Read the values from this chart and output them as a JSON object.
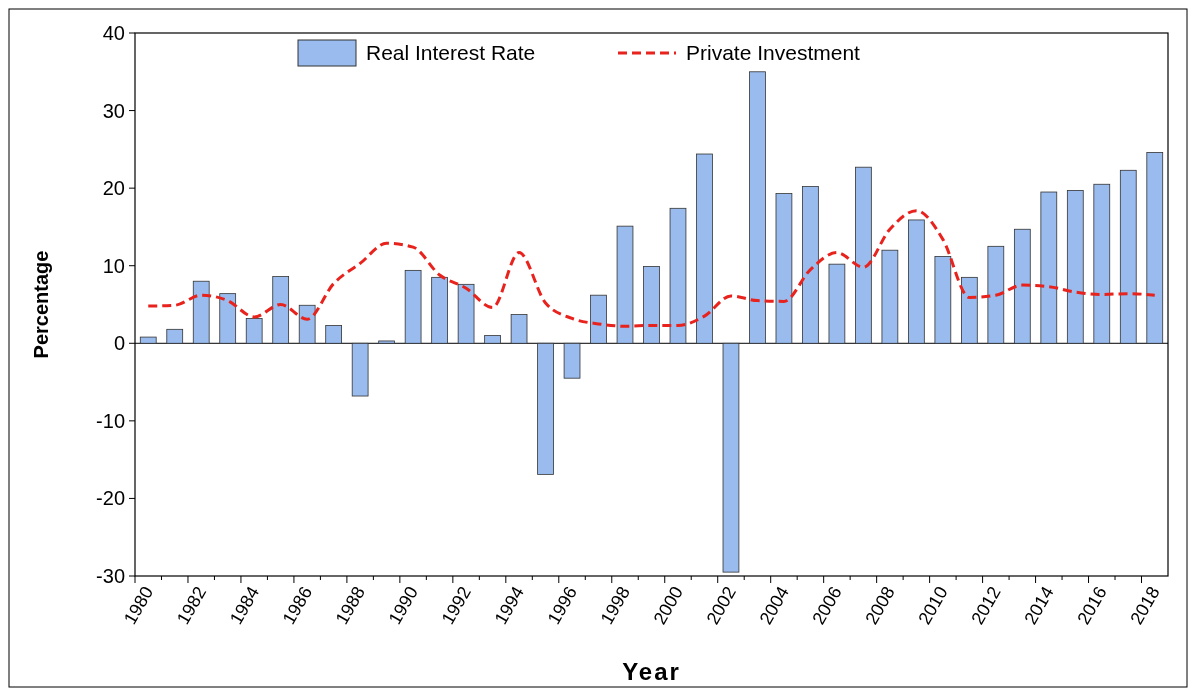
{
  "chart_data": {
    "type": "bar",
    "xlabel": "Year",
    "ylabel": "Percentage",
    "categories": [
      "1980",
      null,
      "1982",
      null,
      "1984",
      null,
      "1986",
      null,
      "1988",
      null,
      "1990",
      null,
      "1992",
      null,
      "1994",
      null,
      "1996",
      null,
      "1998",
      null,
      "2000",
      null,
      "2002",
      null,
      "2004",
      null,
      "2006",
      null,
      "2008",
      null,
      "2010",
      null,
      "2012",
      null,
      "2014",
      null,
      "2016",
      null,
      "2018"
    ],
    "series": [
      {
        "name": "Real Interest Rate",
        "color": "#99bbee",
        "values": [
          0.8,
          1.8,
          8.0,
          6.4,
          3.2,
          8.6,
          4.9,
          2.3,
          -6.8,
          0.3,
          9.4,
          8.5,
          7.6,
          1.0,
          3.7,
          -16.9,
          -4.5,
          6.2,
          15.1,
          9.9,
          17.4,
          24.4,
          -29.5,
          35.0,
          19.3,
          20.2,
          10.2,
          22.7,
          12.0,
          15.9,
          11.2,
          8.5,
          12.5,
          14.7,
          19.5,
          19.7,
          20.5,
          22.3,
          24.6
        ]
      },
      {
        "name": "Private Investment",
        "type": "line",
        "color": "#e8221c",
        "line_style": "dashed",
        "values": [
          4.8,
          4.9,
          6.2,
          5.5,
          3.4,
          5.0,
          3.1,
          7.7,
          10.3,
          12.9,
          12.4,
          8.8,
          7.1,
          4.6,
          11.7,
          5.2,
          3.2,
          2.5,
          2.2,
          2.3,
          2.3,
          3.5,
          6.1,
          5.5,
          5.4,
          9.5,
          11.7,
          9.8,
          14.7,
          17.1,
          13.4,
          5.9,
          6.2,
          7.5,
          7.3,
          6.6,
          6.3,
          6.4,
          6.2
        ]
      }
    ],
    "ylim": [
      -30,
      40
    ],
    "yticks": [
      -30,
      -20,
      -10,
      0,
      10,
      20,
      30,
      40
    ],
    "legend": "top"
  }
}
